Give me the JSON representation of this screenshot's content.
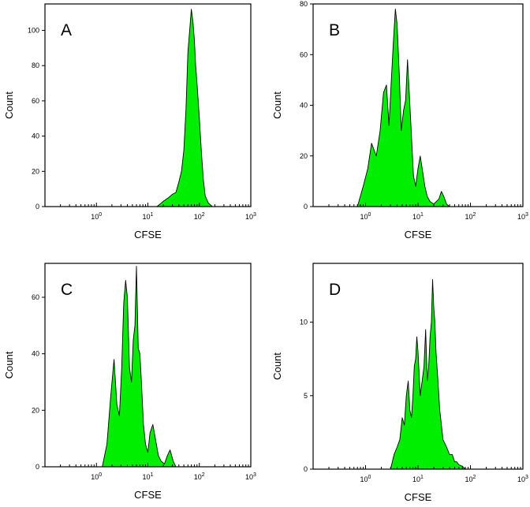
{
  "chart_data": [
    {
      "type": "area",
      "panel_label": "A",
      "xlabel": "CFSE",
      "ylabel": "Count",
      "x_scale": "log",
      "xlim": [
        0.1,
        1000
      ],
      "ylim": [
        0,
        115
      ],
      "x_ticks": [
        {
          "base": "10",
          "exp": "0"
        },
        {
          "base": "10",
          "exp": "1"
        },
        {
          "base": "10",
          "exp": "2"
        },
        {
          "base": "10",
          "exp": "3"
        }
      ],
      "y_ticks": [
        "0",
        "20",
        "40",
        "60",
        "80",
        "100"
      ],
      "fill_color": "#00ee00",
      "x": [
        15,
        20,
        25,
        30,
        35,
        40,
        45,
        50,
        55,
        60,
        65,
        70,
        75,
        80,
        85,
        90,
        95,
        100,
        110,
        120,
        130,
        150,
        180
      ],
      "y": [
        0,
        3,
        5,
        7,
        8,
        14,
        20,
        32,
        55,
        88,
        100,
        112,
        105,
        95,
        80,
        70,
        60,
        50,
        30,
        15,
        6,
        2,
        0
      ]
    },
    {
      "type": "area",
      "panel_label": "B",
      "xlabel": "CFSE",
      "ylabel": "Count",
      "x_scale": "log",
      "xlim": [
        0.1,
        1000
      ],
      "ylim": [
        0,
        80
      ],
      "x_ticks": [
        {
          "base": "10",
          "exp": "0"
        },
        {
          "base": "10",
          "exp": "1"
        },
        {
          "base": "10",
          "exp": "2"
        },
        {
          "base": "10",
          "exp": "3"
        }
      ],
      "y_ticks": [
        "0",
        "20",
        "40",
        "60",
        "80"
      ],
      "fill_color": "#00ee00",
      "x": [
        0.7,
        0.9,
        1.1,
        1.3,
        1.6,
        1.9,
        2.2,
        2.5,
        2.8,
        3.1,
        3.4,
        3.7,
        4.0,
        4.4,
        4.8,
        5.3,
        5.8,
        6.3,
        6.8,
        7.5,
        8.2,
        9.0,
        10,
        11,
        12,
        13.5,
        15,
        17,
        20,
        25,
        28,
        31,
        35,
        40
      ],
      "y": [
        0,
        8,
        15,
        25,
        20,
        30,
        45,
        48,
        32,
        50,
        65,
        78,
        72,
        52,
        30,
        38,
        42,
        58,
        45,
        28,
        12,
        8,
        15,
        20,
        15,
        8,
        4,
        2,
        1,
        3,
        6,
        4,
        1,
        0
      ]
    },
    {
      "type": "area",
      "panel_label": "C",
      "xlabel": "CFSE",
      "ylabel": "Count",
      "x_scale": "log",
      "xlim": [
        0.1,
        1000
      ],
      "ylim": [
        0,
        72
      ],
      "x_ticks": [
        {
          "base": "10",
          "exp": "0"
        },
        {
          "base": "10",
          "exp": "1"
        },
        {
          "base": "10",
          "exp": "2"
        },
        {
          "base": "10",
          "exp": "3"
        }
      ],
      "y_ticks": [
        "0",
        "20",
        "40",
        "60"
      ],
      "fill_color": "#00ee00",
      "x": [
        1.3,
        1.6,
        1.9,
        2.2,
        2.5,
        2.8,
        3.1,
        3.4,
        3.7,
        4.0,
        4.4,
        4.8,
        5.2,
        5.6,
        6.0,
        6.5,
        7.0,
        7.5,
        8.2,
        9.0,
        10,
        11,
        12.5,
        14,
        16,
        18,
        21,
        24,
        27,
        31,
        35
      ],
      "y": [
        0,
        8,
        25,
        38,
        22,
        18,
        35,
        58,
        66,
        60,
        35,
        30,
        45,
        50,
        71,
        42,
        40,
        30,
        15,
        8,
        5,
        12,
        15,
        10,
        4,
        2,
        1,
        4,
        6,
        2,
        0
      ]
    },
    {
      "type": "area",
      "panel_label": "D",
      "xlabel": "CFSE",
      "ylabel": "Count",
      "x_scale": "log",
      "xlim": [
        0.1,
        1000
      ],
      "ylim": [
        0,
        14
      ],
      "x_ticks": [
        {
          "base": "10",
          "exp": "0"
        },
        {
          "base": "10",
          "exp": "1"
        },
        {
          "base": "10",
          "exp": "2"
        },
        {
          "base": "10",
          "exp": "3"
        }
      ],
      "y_ticks": [
        "0",
        "5",
        "10"
      ],
      "fill_color": "#00ee00",
      "x": [
        3,
        3.5,
        4,
        4.5,
        5,
        5.5,
        6,
        6.5,
        7,
        7.5,
        8,
        8.5,
        9,
        9.5,
        10,
        11,
        12,
        13,
        14,
        15,
        16,
        17,
        18,
        19,
        20,
        21,
        22,
        24,
        26,
        28,
        30,
        35,
        40,
        45,
        50,
        55,
        60,
        70,
        80
      ],
      "y": [
        0,
        1,
        1.5,
        2,
        3.5,
        3,
        5,
        6,
        4,
        3.5,
        5,
        7,
        7.5,
        9,
        8,
        5,
        6,
        7,
        9.5,
        6,
        7,
        9,
        10,
        12.9,
        11,
        10,
        8,
        6,
        4,
        3,
        2,
        1.5,
        1,
        1,
        0.5,
        0.5,
        0.3,
        0.2,
        0
      ]
    }
  ]
}
